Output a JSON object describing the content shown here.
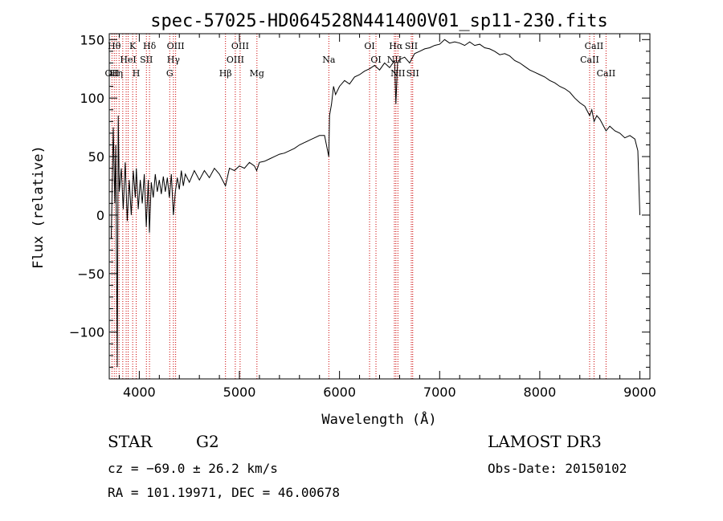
{
  "chart_data": {
    "type": "line",
    "title": "spec-57025-HD064528N441400V01_sp11-230.fits",
    "xlabel": "Wavelength (Å)",
    "ylabel": "Flux (relative)",
    "xlim": [
      3700,
      9100
    ],
    "ylim": [
      -140,
      155
    ],
    "xticks": [
      4000,
      5000,
      6000,
      7000,
      8000,
      9000
    ],
    "yticks": [
      -100,
      -50,
      0,
      50,
      100,
      150
    ],
    "tick_labels_x": [
      "4000",
      "5000",
      "6000",
      "7000",
      "8000",
      "9000"
    ],
    "tick_labels_y": [
      "−100",
      "−50",
      "0",
      "50",
      "100",
      "150"
    ],
    "series": [
      {
        "name": "flux",
        "points": [
          [
            3720,
            -20
          ],
          [
            3740,
            75
          ],
          [
            3755,
            10
          ],
          [
            3765,
            60
          ],
          [
            3780,
            -130
          ],
          [
            3790,
            85
          ],
          [
            3800,
            20
          ],
          [
            3820,
            40
          ],
          [
            3840,
            5
          ],
          [
            3860,
            45
          ],
          [
            3880,
            -5
          ],
          [
            3900,
            30
          ],
          [
            3920,
            0
          ],
          [
            3940,
            38
          ],
          [
            3960,
            15
          ],
          [
            3970,
            40
          ],
          [
            3990,
            5
          ],
          [
            4010,
            30
          ],
          [
            4030,
            10
          ],
          [
            4050,
            35
          ],
          [
            4070,
            -10
          ],
          [
            4090,
            30
          ],
          [
            4101,
            -15
          ],
          [
            4120,
            28
          ],
          [
            4140,
            15
          ],
          [
            4160,
            35
          ],
          [
            4180,
            20
          ],
          [
            4200,
            30
          ],
          [
            4220,
            18
          ],
          [
            4240,
            33
          ],
          [
            4260,
            20
          ],
          [
            4280,
            32
          ],
          [
            4300,
            15
          ],
          [
            4320,
            35
          ],
          [
            4340,
            0
          ],
          [
            4360,
            20
          ],
          [
            4380,
            32
          ],
          [
            4400,
            22
          ],
          [
            4420,
            38
          ],
          [
            4440,
            25
          ],
          [
            4460,
            35
          ],
          [
            4500,
            28
          ],
          [
            4550,
            38
          ],
          [
            4600,
            30
          ],
          [
            4650,
            38
          ],
          [
            4700,
            32
          ],
          [
            4750,
            40
          ],
          [
            4800,
            35
          ],
          [
            4861,
            25
          ],
          [
            4900,
            40
          ],
          [
            4950,
            38
          ],
          [
            5000,
            42
          ],
          [
            5050,
            40
          ],
          [
            5100,
            45
          ],
          [
            5150,
            42
          ],
          [
            5172,
            38
          ],
          [
            5200,
            45
          ],
          [
            5250,
            46
          ],
          [
            5300,
            48
          ],
          [
            5350,
            50
          ],
          [
            5400,
            52
          ],
          [
            5450,
            53
          ],
          [
            5500,
            55
          ],
          [
            5550,
            57
          ],
          [
            5600,
            60
          ],
          [
            5650,
            62
          ],
          [
            5700,
            64
          ],
          [
            5750,
            66
          ],
          [
            5800,
            68
          ],
          [
            5850,
            68
          ],
          [
            5893,
            50
          ],
          [
            5900,
            85
          ],
          [
            5920,
            95
          ],
          [
            5940,
            110
          ],
          [
            5960,
            103
          ],
          [
            6000,
            110
          ],
          [
            6050,
            115
          ],
          [
            6100,
            112
          ],
          [
            6150,
            118
          ],
          [
            6200,
            120
          ],
          [
            6250,
            123
          ],
          [
            6300,
            125
          ],
          [
            6350,
            128
          ],
          [
            6400,
            124
          ],
          [
            6450,
            130
          ],
          [
            6500,
            126
          ],
          [
            6550,
            132
          ],
          [
            6563,
            95
          ],
          [
            6580,
            130
          ],
          [
            6600,
            133
          ],
          [
            6650,
            135
          ],
          [
            6700,
            130
          ],
          [
            6750,
            138
          ],
          [
            6800,
            140
          ],
          [
            6850,
            142
          ],
          [
            6900,
            143
          ],
          [
            6950,
            145
          ],
          [
            7000,
            146
          ],
          [
            7050,
            150
          ],
          [
            7100,
            147
          ],
          [
            7150,
            148
          ],
          [
            7200,
            147
          ],
          [
            7250,
            145
          ],
          [
            7300,
            148
          ],
          [
            7350,
            145
          ],
          [
            7400,
            146
          ],
          [
            7450,
            143
          ],
          [
            7500,
            142
          ],
          [
            7550,
            140
          ],
          [
            7600,
            137
          ],
          [
            7650,
            138
          ],
          [
            7700,
            136
          ],
          [
            7750,
            132
          ],
          [
            7800,
            130
          ],
          [
            7850,
            127
          ],
          [
            7900,
            124
          ],
          [
            7950,
            122
          ],
          [
            8000,
            120
          ],
          [
            8050,
            118
          ],
          [
            8100,
            115
          ],
          [
            8150,
            113
          ],
          [
            8200,
            110
          ],
          [
            8250,
            108
          ],
          [
            8300,
            105
          ],
          [
            8350,
            100
          ],
          [
            8400,
            96
          ],
          [
            8450,
            93
          ],
          [
            8498,
            85
          ],
          [
            8520,
            90
          ],
          [
            8542,
            80
          ],
          [
            8570,
            85
          ],
          [
            8600,
            82
          ],
          [
            8662,
            72
          ],
          [
            8700,
            76
          ],
          [
            8750,
            72
          ],
          [
            8800,
            70
          ],
          [
            8850,
            66
          ],
          [
            8900,
            68
          ],
          [
            8950,
            65
          ],
          [
            8980,
            55
          ],
          [
            9000,
            0
          ]
        ]
      }
    ],
    "line_markers": [
      {
        "wavelength": 3727,
        "label": "OII",
        "row": 3
      },
      {
        "wavelength": 3750,
        "label": "Hθ",
        "row": 1
      },
      {
        "wavelength": 3771,
        "label": "Hη",
        "row": 3
      },
      {
        "wavelength": 3798,
        "label": "",
        "row": 0
      },
      {
        "wavelength": 3835,
        "label": "",
        "row": 0
      },
      {
        "wavelength": 3869,
        "label": "",
        "row": 0
      },
      {
        "wavelength": 3889,
        "label": "HeI",
        "row": 2
      },
      {
        "wavelength": 3934,
        "label": "K",
        "row": 1
      },
      {
        "wavelength": 3969,
        "label": "H",
        "row": 3
      },
      {
        "wavelength": 4071,
        "label": "SII",
        "row": 2
      },
      {
        "wavelength": 4102,
        "label": "Hδ",
        "row": 1
      },
      {
        "wavelength": 4304,
        "label": "G",
        "row": 3
      },
      {
        "wavelength": 4341,
        "label": "Hγ",
        "row": 2
      },
      {
        "wavelength": 4363,
        "label": "OIII",
        "row": 1
      },
      {
        "wavelength": 4861,
        "label": "Hβ",
        "row": 3
      },
      {
        "wavelength": 4959,
        "label": "OIII",
        "row": 2
      },
      {
        "wavelength": 5007,
        "label": "OIII",
        "row": 1
      },
      {
        "wavelength": 5175,
        "label": "Mg",
        "row": 3
      },
      {
        "wavelength": 5893,
        "label": "Na",
        "row": 2
      },
      {
        "wavelength": 6300,
        "label": "OI",
        "row": 1
      },
      {
        "wavelength": 6364,
        "label": "OI",
        "row": 2
      },
      {
        "wavelength": 6548,
        "label": "NII",
        "row": 2
      },
      {
        "wavelength": 6563,
        "label": "Hα",
        "row": 1
      },
      {
        "wavelength": 6583,
        "label": "NII",
        "row": 3
      },
      {
        "wavelength": 6717,
        "label": "SII",
        "row": 1
      },
      {
        "wavelength": 6731,
        "label": "SII",
        "row": 3
      },
      {
        "wavelength": 8498,
        "label": "CaII",
        "row": 2
      },
      {
        "wavelength": 8542,
        "label": "CaII",
        "row": 1
      },
      {
        "wavelength": 8662,
        "label": "CaII",
        "row": 3
      }
    ]
  },
  "info": {
    "object_class": "STAR",
    "subclass": "G2",
    "survey": "LAMOST DR3",
    "redshift": "cz = −69.0 ± 26.2 km/s",
    "obs_date": "Obs-Date: 20150102",
    "coords": "RA = 101.19971, DEC =  46.00678"
  },
  "colors": {
    "spectrum": "#000000",
    "marker_line": "#cc0000"
  }
}
